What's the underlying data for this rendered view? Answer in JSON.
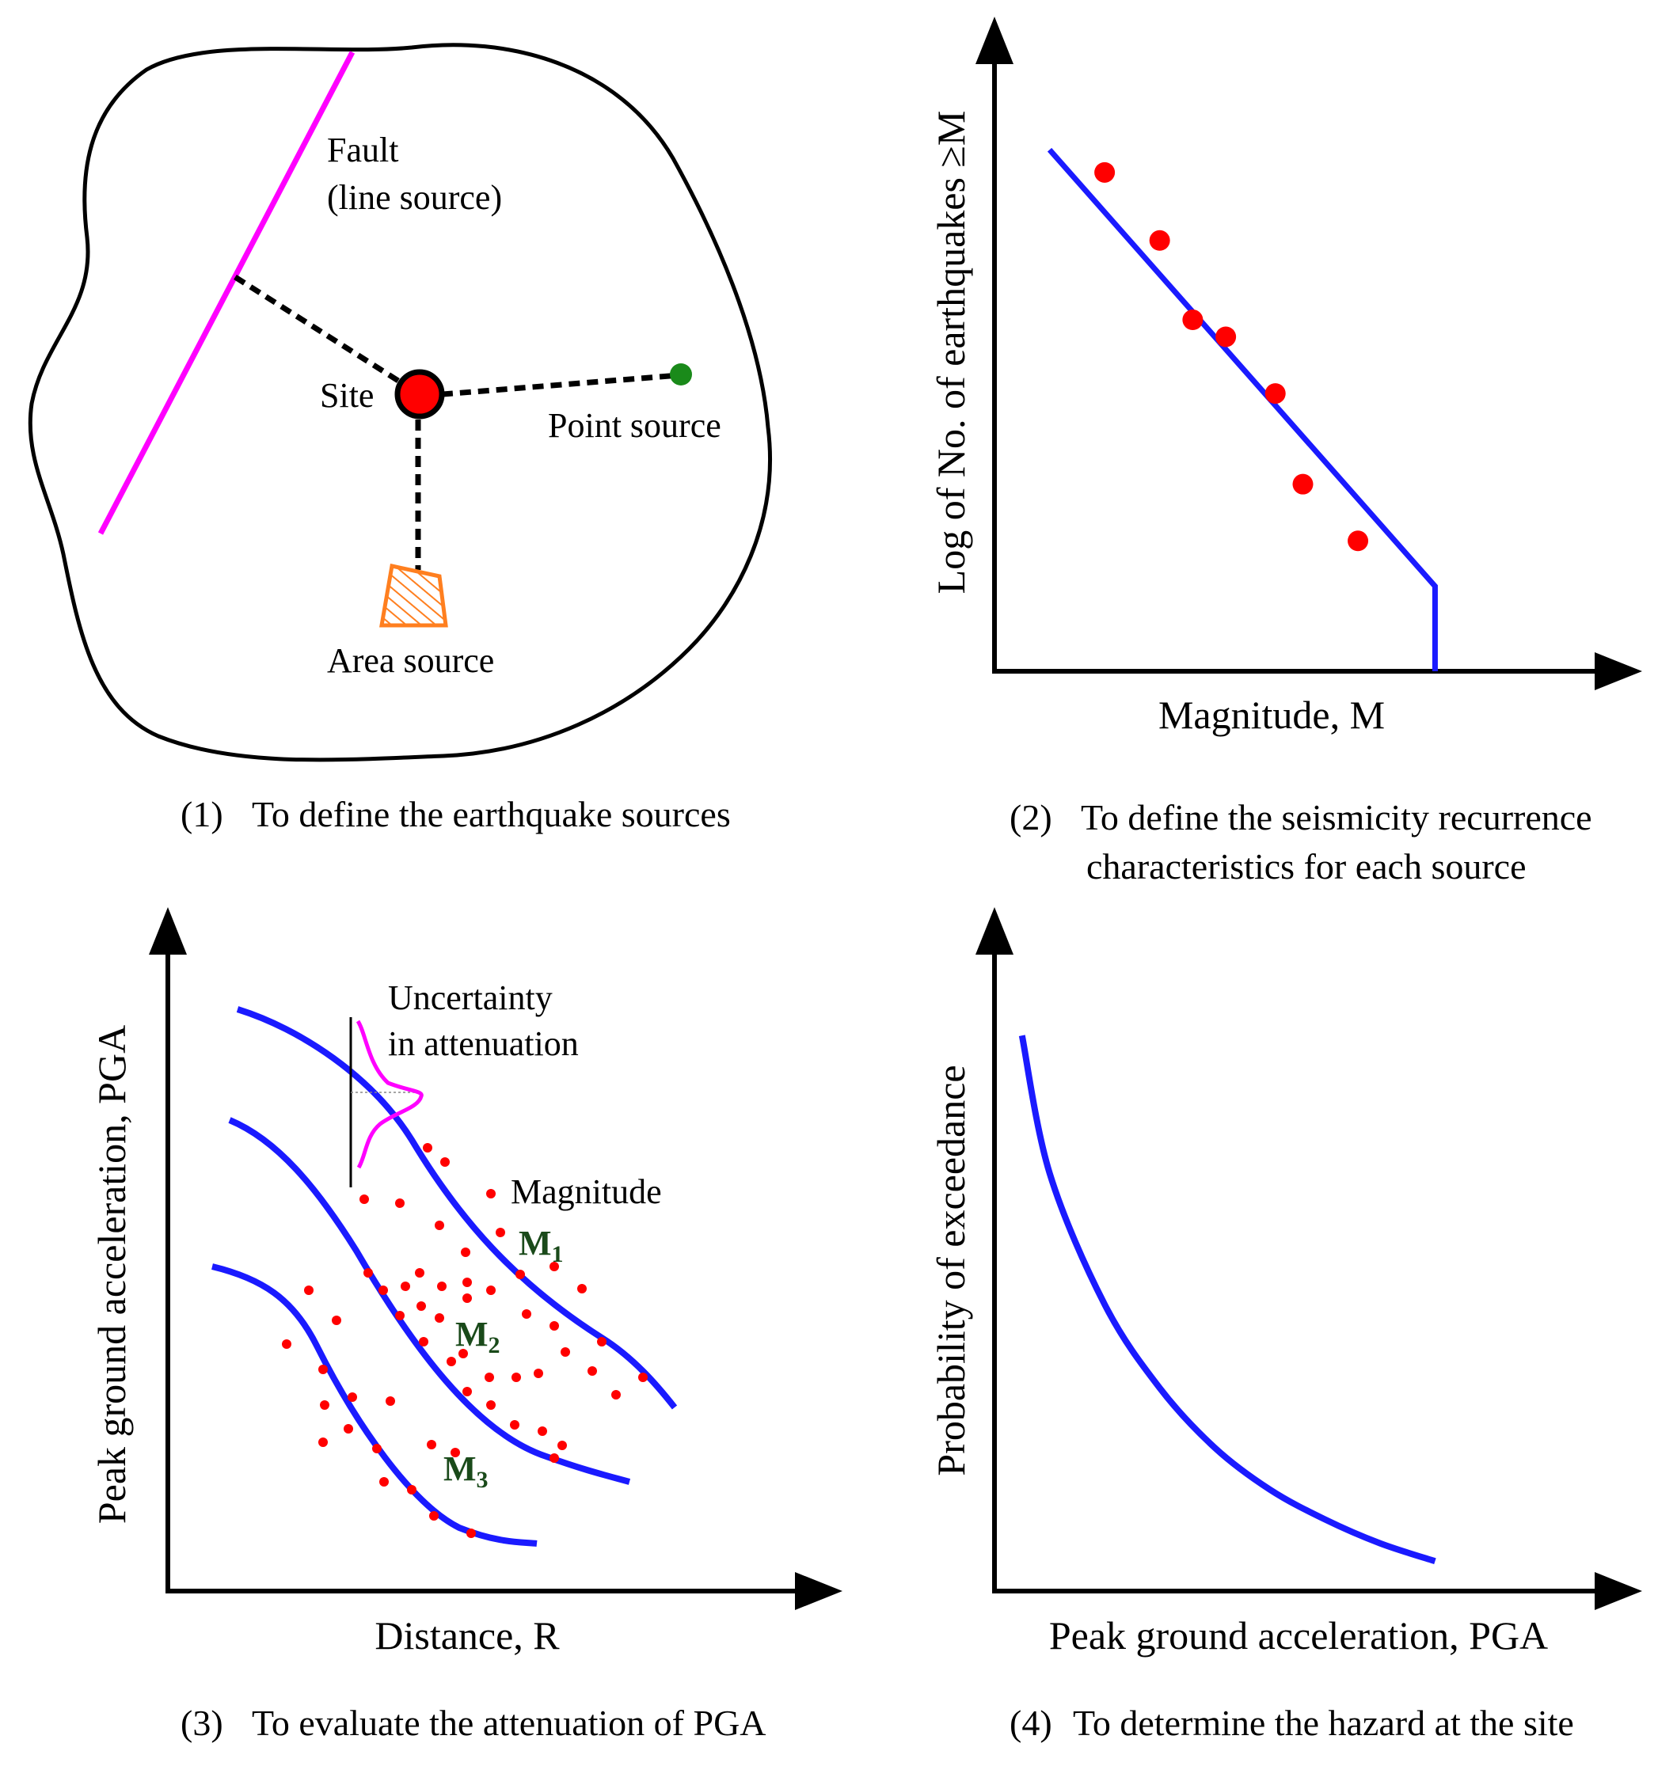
{
  "colors": {
    "curve": "#1a1aff",
    "point": "#ff0000",
    "fault": "#ff00ff",
    "point_source": "#1a8a1a",
    "area_source": "#ff7f1f",
    "magnitude_label": "#1a4a1a"
  },
  "panel1": {
    "fault_label_line1": "Fault",
    "fault_label_line2": "(line source)",
    "site_label": "Site",
    "point_source_label": "Point source",
    "area_source_label": "Area source",
    "caption_number": "(1)",
    "caption_text": "To define the earthquake sources"
  },
  "panel2": {
    "ylabel": "Log of No. of earthquakes ≥M",
    "xlabel": "Magnitude, M",
    "caption_number": "(2)",
    "caption_line1": "To define the seismicity recurrence",
    "caption_line2": "characteristics for each source"
  },
  "panel3": {
    "ylabel": "Peak ground acceleration, PGA",
    "xlabel": "Distance, R",
    "uncertainty_line1": "Uncertainty",
    "uncertainty_line2": "in attenuation",
    "magnitude_label": "Magnitude",
    "m1_main": "M",
    "m1_sub": "1",
    "m2_main": "M",
    "m2_sub": "2",
    "m3_main": "M",
    "m3_sub": "3",
    "caption_number": "(3)",
    "caption_text": "To evaluate the attenuation of PGA"
  },
  "panel4": {
    "ylabel": "Probability of exceedance",
    "xlabel": "Peak ground acceleration, PGA",
    "caption_number": "(4)",
    "caption_text": "To determine the hazard at the site"
  },
  "chart_data": [
    {
      "type": "scatter",
      "title": "To define the seismicity recurrence characteristics for each source",
      "xlabel": "Magnitude, M",
      "ylabel": "Log of No. of earthquakes ≥M",
      "xlim": [
        0,
        10
      ],
      "ylim": [
        0,
        10
      ],
      "series": [
        {
          "name": "observed",
          "x": [
            2.0,
            3.0,
            3.6,
            4.2,
            5.1,
            5.6,
            6.6
          ],
          "y": [
            8.8,
            7.6,
            6.2,
            5.9,
            4.9,
            3.3,
            2.3
          ]
        },
        {
          "name": "recurrence line",
          "x": [
            1.0,
            8.0,
            8.0
          ],
          "y": [
            9.2,
            1.5,
            0.0
          ]
        }
      ]
    },
    {
      "type": "line",
      "title": "To determine the hazard at the site",
      "xlabel": "Peak ground acceleration, PGA",
      "ylabel": "Probability of exceedance",
      "xlim": [
        0,
        10
      ],
      "ylim": [
        0,
        10
      ],
      "series": [
        {
          "name": "hazard curve",
          "x": [
            0.5,
            1.0,
            2.0,
            3.0,
            4.0,
            5.0,
            6.0,
            7.0,
            8.0
          ],
          "y": [
            9.3,
            7.0,
            4.8,
            3.4,
            2.4,
            1.7,
            1.2,
            0.8,
            0.5
          ]
        }
      ]
    }
  ]
}
